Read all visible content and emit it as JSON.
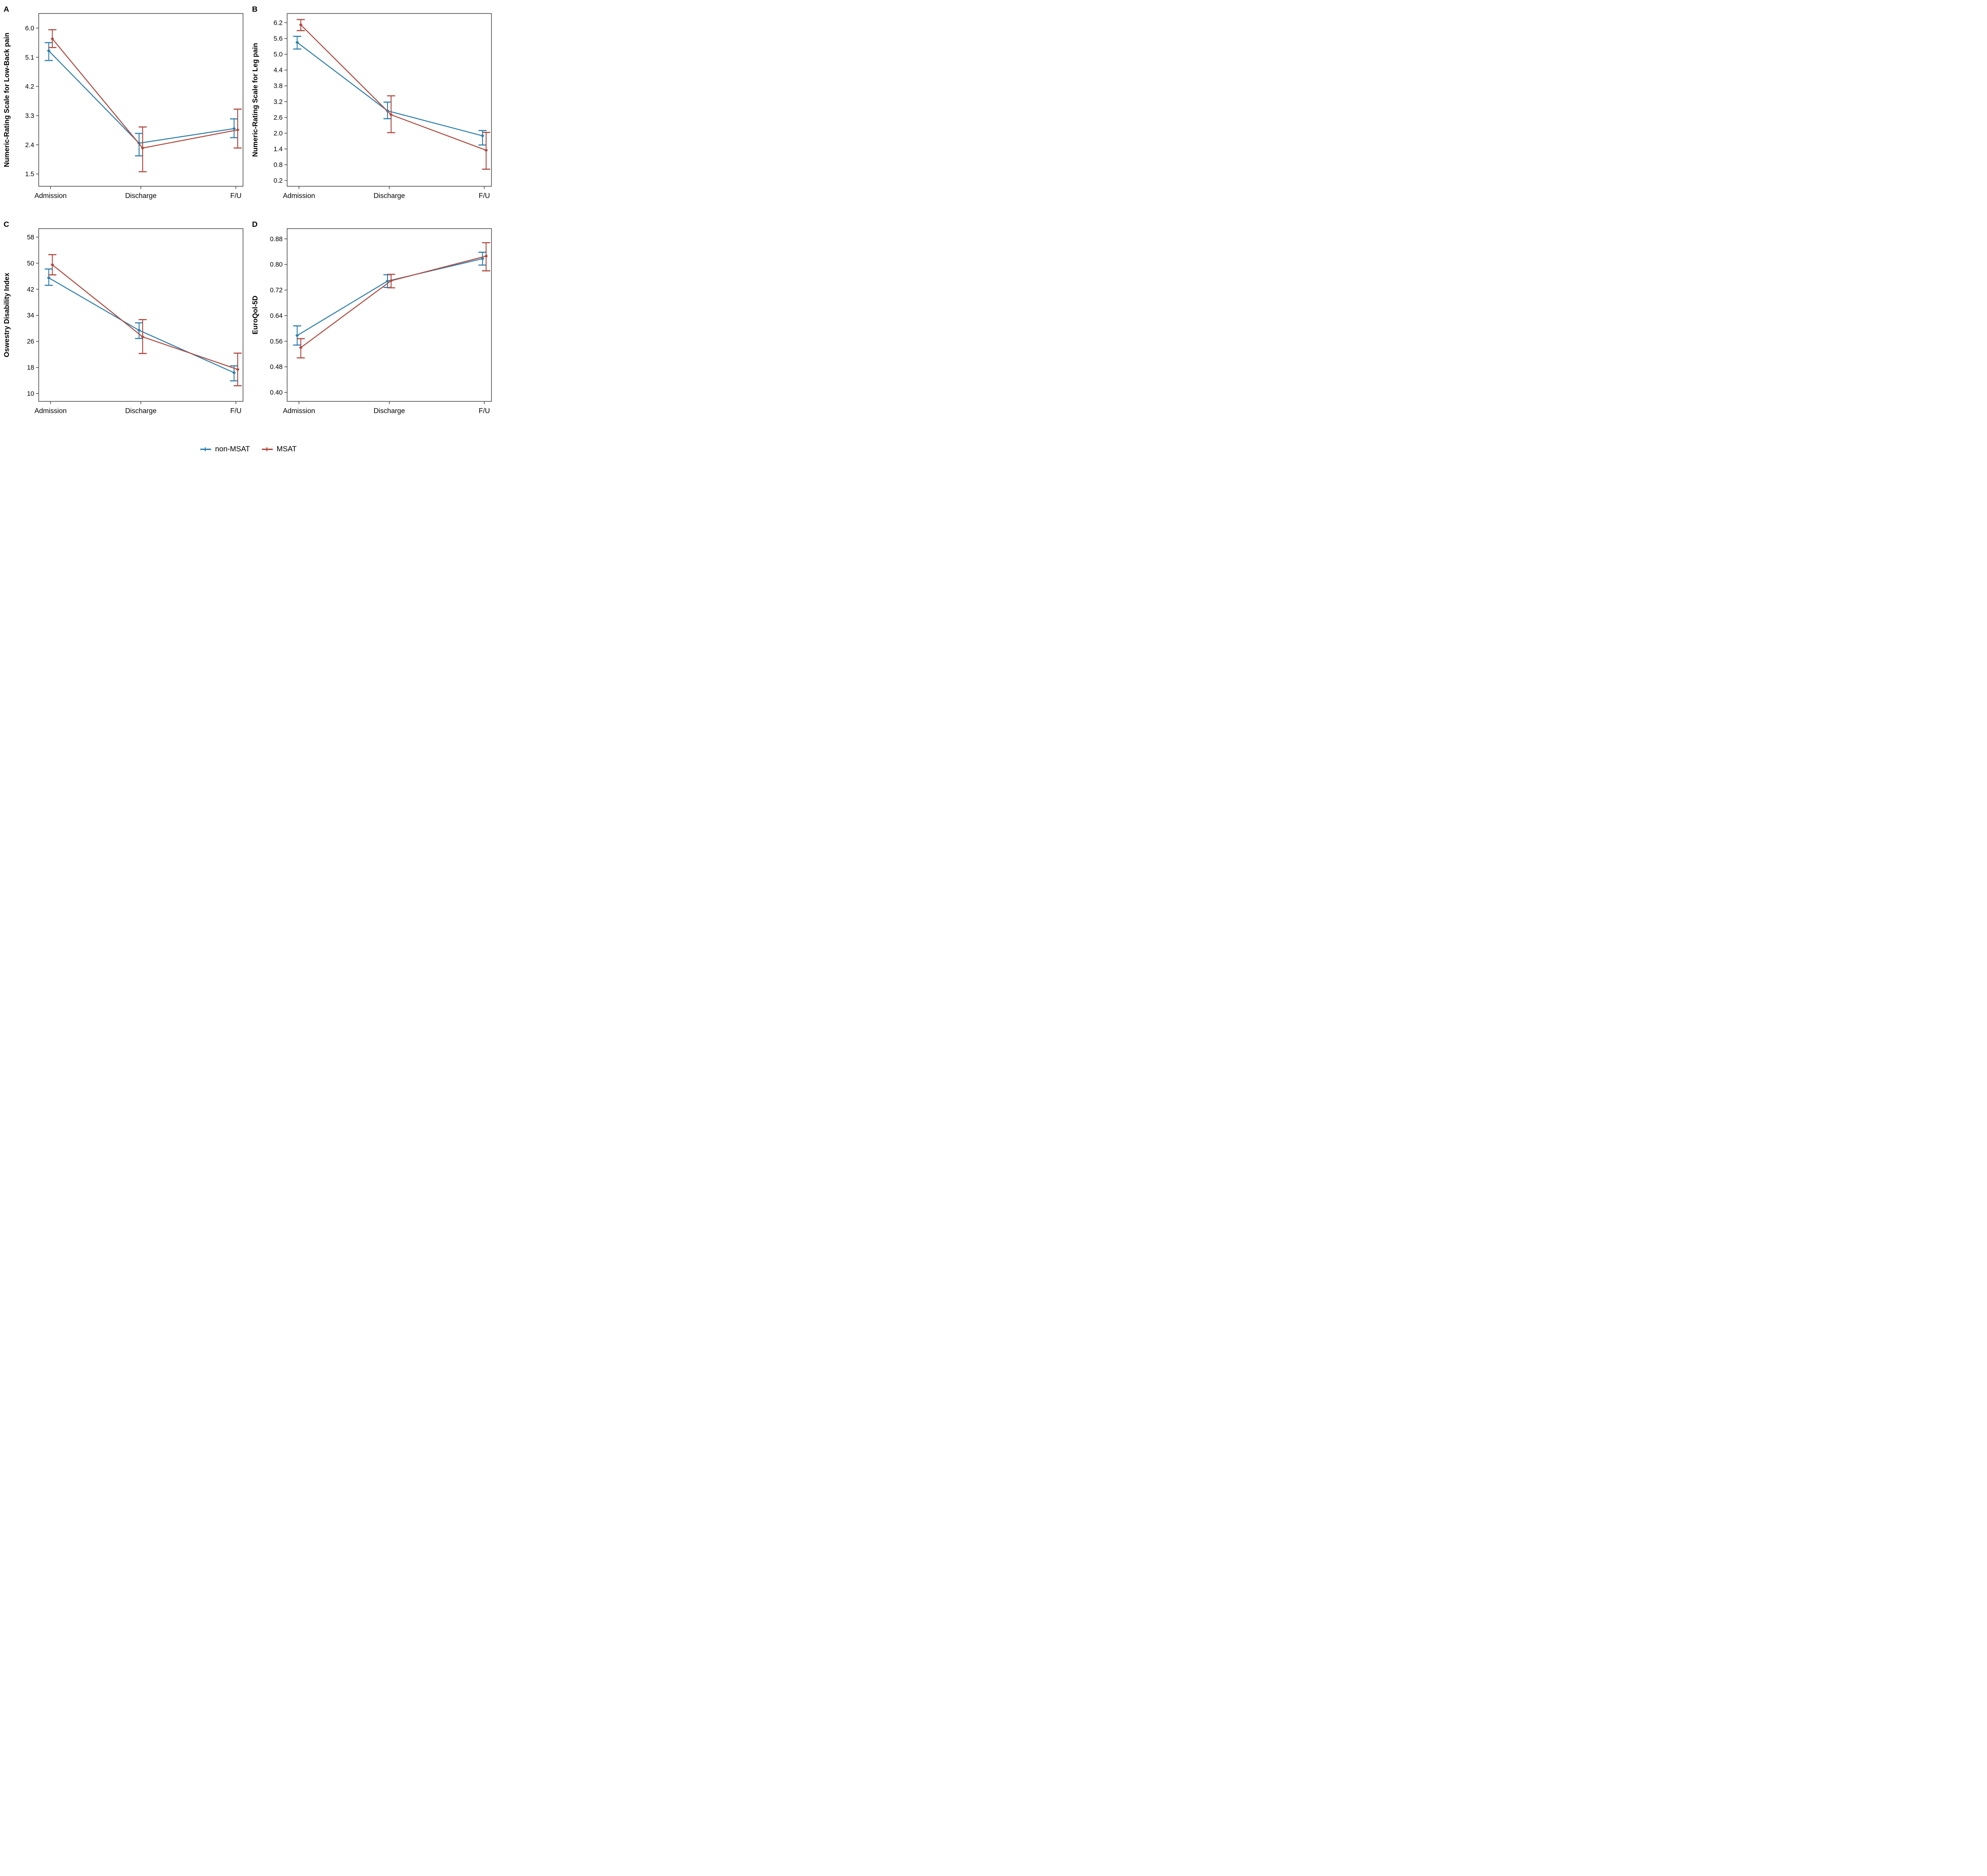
{
  "figure": {
    "categories": [
      "Admission",
      "Discharge",
      "F/U"
    ],
    "colors": {
      "non_msat": "#2e7eaa",
      "msat": "#ae4a40",
      "axis": "#454545",
      "text": "#000000"
    },
    "legend": {
      "items": [
        {
          "label": "non-MSAT",
          "color": "#2e7eaa"
        },
        {
          "label": "MSAT",
          "color": "#ae4a40"
        }
      ]
    }
  },
  "chart_data": [
    {
      "type": "line",
      "panel_letter": "A",
      "ylabel": "Numeric-Rating Scale for Low-Back pain",
      "categories": [
        "Admission",
        "Discharge",
        "F/U"
      ],
      "yticks": [
        6.0,
        5.1,
        4.2,
        3.3,
        2.4,
        1.5
      ],
      "ytick_labels": [
        "6.0",
        "5.1",
        "4.2",
        "3.3",
        "2.4",
        "1.5"
      ],
      "ylim": [
        1.12,
        6.45
      ],
      "grid": false,
      "series": [
        {
          "name": "non-MSAT",
          "color": "#2e7eaa",
          "values": [
            5.3,
            2.45,
            2.9
          ],
          "err_low": [
            5.0,
            2.06,
            2.62
          ],
          "err_high": [
            5.55,
            2.75,
            3.2
          ]
        },
        {
          "name": "MSAT",
          "color": "#ae4a40",
          "values": [
            5.67,
            2.3,
            2.86
          ],
          "err_low": [
            5.4,
            1.57,
            2.3
          ],
          "err_high": [
            5.95,
            2.95,
            3.5
          ]
        }
      ]
    },
    {
      "type": "line",
      "panel_letter": "B",
      "ylabel": "Numeric-Rating Scale for Leg pain",
      "categories": [
        "Admission",
        "Discharge",
        "F/U"
      ],
      "yticks": [
        6.2,
        5.6,
        5.0,
        4.4,
        3.8,
        3.2,
        2.6,
        2.0,
        1.4,
        0.8,
        0.2
      ],
      "ytick_labels": [
        "6.2",
        "5.6",
        "5.0",
        "4.4",
        "3.8",
        "3.2",
        "2.6",
        "2.0",
        "1.4",
        "0.8",
        "0.2"
      ],
      "ylim": [
        -0.02,
        6.55
      ],
      "grid": false,
      "series": [
        {
          "name": "non-MSAT",
          "color": "#2e7eaa",
          "values": [
            5.45,
            2.85,
            1.9
          ],
          "err_low": [
            5.2,
            2.55,
            1.55
          ],
          "err_high": [
            5.68,
            3.18,
            2.1
          ]
        },
        {
          "name": "MSAT",
          "color": "#ae4a40",
          "values": [
            6.12,
            2.7,
            1.35
          ],
          "err_low": [
            5.9,
            2.02,
            0.63
          ],
          "err_high": [
            6.32,
            3.42,
            2.03
          ]
        }
      ]
    },
    {
      "type": "line",
      "panel_letter": "C",
      "ylabel": "Oswestry Disability Index",
      "categories": [
        "Admission",
        "Discharge",
        "F/U"
      ],
      "yticks": [
        58,
        50,
        42,
        34,
        26,
        18,
        10
      ],
      "ytick_labels": [
        "58",
        "50",
        "42",
        "34",
        "26",
        "18",
        "10"
      ],
      "ylim": [
        7.6,
        60.6
      ],
      "grid": false,
      "series": [
        {
          "name": "non-MSAT",
          "color": "#2e7eaa",
          "values": [
            45.5,
            29.4,
            16.4
          ],
          "err_low": [
            43.2,
            26.9,
            13.9
          ],
          "err_high": [
            48.2,
            31.7,
            18.5
          ]
        },
        {
          "name": "MSAT",
          "color": "#ae4a40",
          "values": [
            49.5,
            27.4,
            17.4
          ],
          "err_low": [
            46.4,
            22.3,
            12.4
          ],
          "err_high": [
            52.6,
            32.7,
            22.4
          ]
        }
      ]
    },
    {
      "type": "line",
      "panel_letter": "D",
      "ylabel": "EuroQol-5D",
      "categories": [
        "Admission",
        "Discharge",
        "F/U"
      ],
      "yticks": [
        0.88,
        0.8,
        0.72,
        0.64,
        0.56,
        0.48,
        0.4
      ],
      "ytick_labels": [
        "0.88",
        "0.80",
        "0.72",
        "0.64",
        "0.56",
        "0.48",
        "0.40"
      ],
      "ylim": [
        0.372,
        0.912
      ],
      "grid": false,
      "series": [
        {
          "name": "non-MSAT",
          "color": "#2e7eaa",
          "values": [
            0.578,
            0.748,
            0.818
          ],
          "err_low": [
            0.548,
            0.728,
            0.798
          ],
          "err_high": [
            0.608,
            0.768,
            0.838
          ]
        },
        {
          "name": "MSAT",
          "color": "#ae4a40",
          "values": [
            0.54,
            0.749,
            0.826
          ],
          "err_low": [
            0.508,
            0.727,
            0.78
          ],
          "err_high": [
            0.568,
            0.769,
            0.868
          ]
        }
      ]
    }
  ]
}
